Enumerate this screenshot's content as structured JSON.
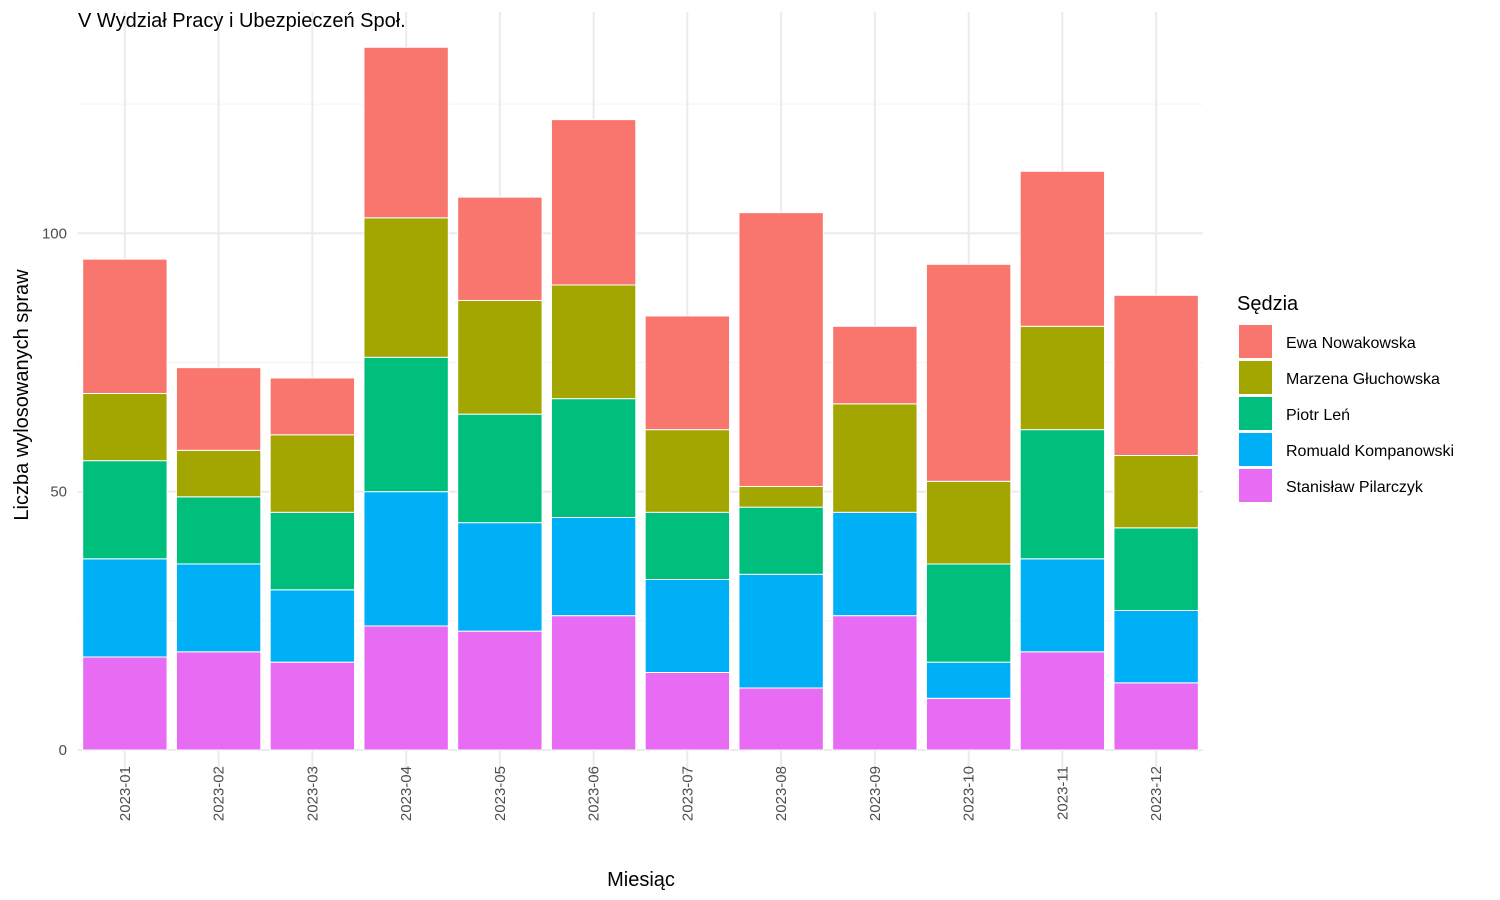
{
  "chart_data": {
    "type": "bar",
    "stacked": true,
    "title": "V Wydział Pracy i Ubezpieczeń Społ.",
    "xlabel": "Miesiąc",
    "ylabel": "Liczba wylosowanych spraw",
    "ylim": [
      0,
      142
    ],
    "yticks": [
      0,
      50,
      100
    ],
    "grid": true,
    "legend": {
      "title": "Sędzia",
      "position": "right"
    },
    "categories": [
      "2023-01",
      "2023-02",
      "2023-03",
      "2023-04",
      "2023-05",
      "2023-06",
      "2023-07",
      "2023-08",
      "2023-09",
      "2023-10",
      "2023-11",
      "2023-12"
    ],
    "series": [
      {
        "name": "Stanisław Pilarczyk",
        "color": "#E76BF3",
        "values": [
          18,
          19,
          17,
          24,
          23,
          26,
          15,
          12,
          26,
          10,
          19,
          13
        ]
      },
      {
        "name": "Romuald Kompanowski",
        "color": "#00B0F6",
        "values": [
          19,
          17,
          14,
          26,
          21,
          19,
          18,
          22,
          20,
          7,
          18,
          14
        ]
      },
      {
        "name": "Piotr Leń",
        "color": "#00BF7D",
        "values": [
          19,
          13,
          15,
          26,
          21,
          23,
          13,
          13,
          0,
          19,
          25,
          16
        ]
      },
      {
        "name": "Marzena Głuchowska",
        "color": "#A3A500",
        "values": [
          13,
          9,
          15,
          27,
          22,
          22,
          16,
          4,
          21,
          16,
          20,
          14
        ]
      },
      {
        "name": "Ewa Nowakowska",
        "color": "#F8766D",
        "values": [
          26,
          16,
          11,
          33,
          20,
          32,
          22,
          53,
          15,
          42,
          30,
          31
        ]
      }
    ],
    "legend_order": [
      "Ewa Nowakowska",
      "Marzena Głuchowska",
      "Piotr Leń",
      "Romuald Kompanowski",
      "Stanisław Pilarczyk"
    ]
  }
}
